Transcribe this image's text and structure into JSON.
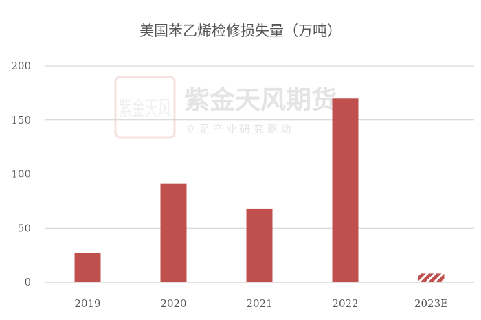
{
  "chart_data": {
    "type": "bar",
    "title": "美国苯乙烯检修损失量（万吨）",
    "xlabel": "",
    "ylabel": "",
    "categories": [
      "2019",
      "2020",
      "2021",
      "2022",
      "2023E"
    ],
    "values": [
      27,
      91,
      68,
      170,
      8
    ],
    "estimate_flags": [
      false,
      false,
      false,
      false,
      true
    ],
    "ylim": [
      0,
      200
    ],
    "yticks": [
      0,
      50,
      100,
      150,
      200
    ],
    "grid": true,
    "legend": "none",
    "colors": {
      "bar": "#c0504d",
      "hatch": "#ffffff",
      "grid": "#cfcfcf"
    }
  },
  "watermark": {
    "logo_text": "紫金天风",
    "brand": "紫金天风期货",
    "slogan": "立 足 产 业   研 究 驱 动"
  }
}
